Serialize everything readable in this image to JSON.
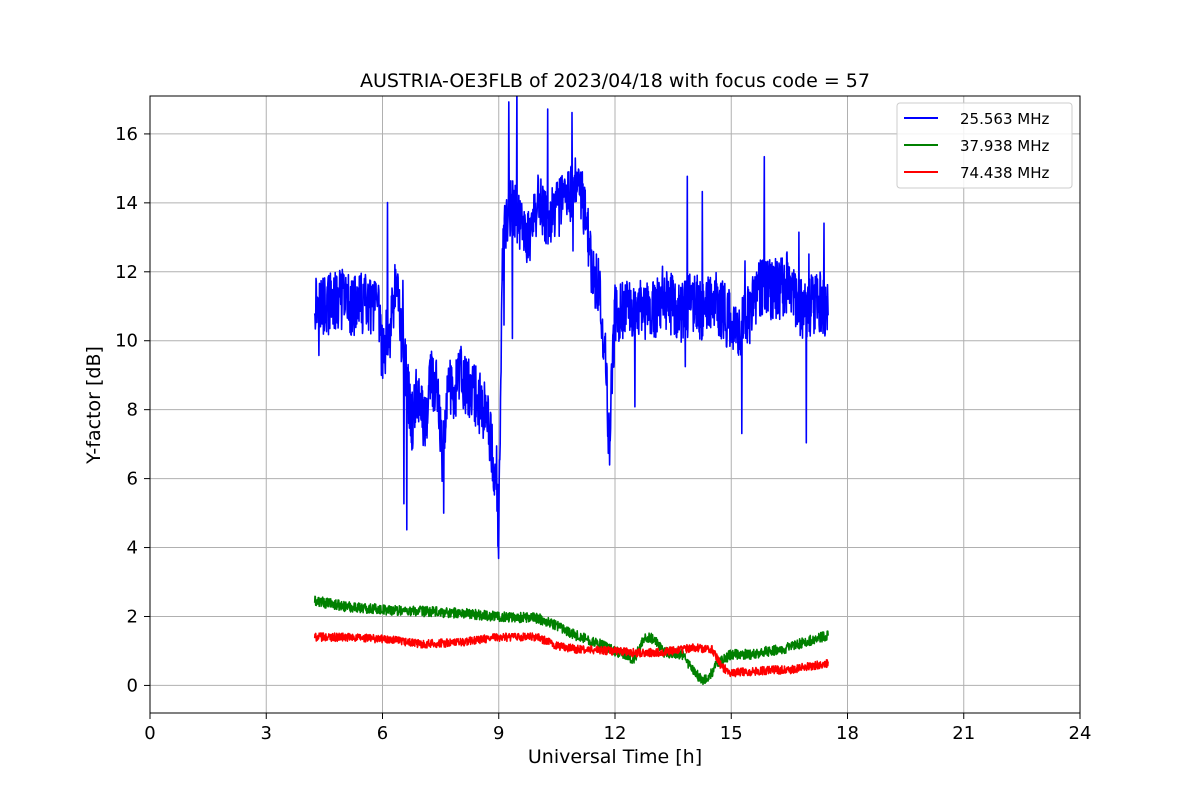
{
  "chart_data": {
    "type": "line",
    "title": "AUSTRIA-OE3FLB of 2023/04/18 with focus code = 57",
    "xlabel": "Universal Time [h]",
    "ylabel": "Y-factor [dB]",
    "xlim": [
      0,
      24
    ],
    "ylim": [
      -0.8,
      17.1
    ],
    "xticks": [
      0,
      3,
      6,
      9,
      12,
      15,
      18,
      21,
      24
    ],
    "yticks": [
      0,
      2,
      4,
      6,
      8,
      10,
      12,
      14,
      16
    ],
    "grid": true,
    "legend_position": "top-right",
    "series": [
      {
        "name": "25.563 MHz",
        "color": "#0000ff",
        "noise": 0.9,
        "x": [
          4.25,
          4.5,
          4.75,
          5.0,
          5.25,
          5.5,
          5.75,
          5.9,
          6.0,
          6.1,
          6.2,
          6.3,
          6.4,
          6.5,
          6.6,
          6.75,
          6.85,
          7.0,
          7.1,
          7.25,
          7.4,
          7.55,
          7.7,
          7.85,
          8.0,
          8.2,
          8.4,
          8.6,
          8.75,
          8.9,
          9.0,
          9.1,
          9.25,
          9.5,
          9.75,
          10.0,
          10.25,
          10.5,
          10.75,
          11.0,
          11.25,
          11.4,
          11.6,
          11.75,
          11.85,
          12.0,
          12.25,
          12.5,
          12.75,
          13.0,
          13.25,
          13.5,
          13.75,
          14.0,
          14.25,
          14.5,
          14.75,
          15.0,
          15.25,
          15.5,
          15.75,
          16.0,
          16.25,
          16.5,
          16.75,
          17.0,
          17.25,
          17.5
        ],
        "y": [
          11.2,
          11.0,
          11.1,
          11.2,
          11.0,
          11.1,
          10.9,
          10.8,
          9.5,
          10.0,
          10.3,
          11.3,
          11.5,
          10.0,
          9.2,
          7.5,
          8.5,
          8.0,
          7.5,
          9.0,
          8.5,
          6.5,
          8.8,
          8.5,
          9.0,
          8.6,
          8.4,
          8.0,
          7.5,
          6.0,
          4.5,
          12.5,
          14.0,
          13.5,
          13.0,
          14.0,
          13.5,
          13.8,
          14.2,
          14.5,
          13.8,
          12.0,
          11.5,
          9.5,
          7.0,
          10.8,
          10.9,
          11.0,
          10.8,
          10.9,
          11.3,
          11.0,
          10.8,
          11.2,
          10.8,
          11.3,
          10.9,
          10.5,
          10.4,
          10.8,
          11.6,
          11.5,
          11.5,
          11.8,
          10.9,
          11.0,
          11.2,
          10.8
        ]
      },
      {
        "name": "37.938 MHz",
        "color": "#008000",
        "noise": 0.15,
        "x": [
          4.25,
          5.0,
          6.0,
          7.0,
          8.0,
          9.0,
          10.0,
          10.5,
          11.0,
          11.5,
          12.0,
          12.3,
          12.5,
          12.75,
          13.0,
          13.25,
          13.5,
          13.75,
          14.0,
          14.2,
          14.4,
          14.6,
          15.0,
          15.5,
          16.0,
          16.5,
          17.0,
          17.5
        ],
        "y": [
          2.45,
          2.3,
          2.2,
          2.15,
          2.1,
          2.0,
          1.95,
          1.75,
          1.45,
          1.25,
          1.0,
          0.85,
          0.75,
          1.4,
          1.35,
          0.95,
          0.95,
          0.9,
          0.45,
          0.2,
          0.15,
          0.6,
          0.9,
          0.9,
          1.0,
          1.1,
          1.3,
          1.45
        ]
      },
      {
        "name": "74.438 MHz",
        "color": "#ff0000",
        "noise": 0.12,
        "x": [
          4.25,
          5.0,
          6.0,
          7.0,
          8.0,
          9.0,
          10.0,
          10.5,
          11.0,
          12.0,
          12.5,
          13.0,
          13.5,
          14.0,
          14.5,
          14.75,
          15.0,
          15.25,
          15.5,
          16.0,
          16.5,
          17.0,
          17.5
        ],
        "y": [
          1.4,
          1.4,
          1.35,
          1.2,
          1.25,
          1.4,
          1.4,
          1.15,
          1.05,
          1.0,
          0.95,
          0.95,
          1.0,
          1.1,
          1.05,
          0.55,
          0.35,
          0.4,
          0.4,
          0.45,
          0.45,
          0.55,
          0.65
        ]
      }
    ]
  }
}
